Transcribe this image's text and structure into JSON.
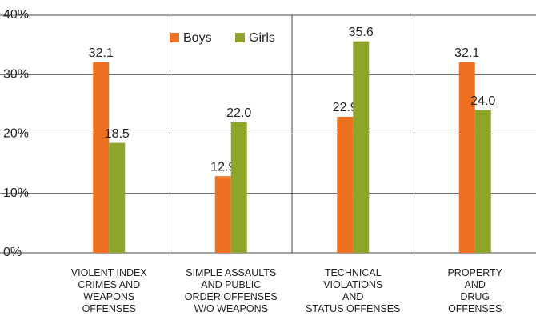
{
  "chart_data": {
    "type": "bar",
    "categories": [
      "VIOLENT INDEX\nCRIMES AND\nWEAPONS\nOFFENSES",
      "SIMPLE ASSAULTS\nAND PUBLIC\nORDER OFFENSES\nW/O WEAPONS",
      "TECHNICAL\nVIOLATIONS\nAND\nSTATUS OFFENSES",
      "PROPERTY\nAND\nDRUG\nOFFENSES"
    ],
    "series": [
      {
        "name": "Boys",
        "color": "#f07022",
        "values": [
          32.1,
          12.9,
          22.9,
          32.1
        ],
        "value_labels": [
          "32.1",
          "12.9",
          "22.9",
          "32.1"
        ]
      },
      {
        "name": "Girls",
        "color": "#8ca52a",
        "values": [
          18.5,
          22.0,
          35.6,
          24.0
        ],
        "value_labels": [
          "18.5",
          "22.0",
          "35.6",
          "24.0"
        ]
      }
    ],
    "ylim": [
      0,
      40
    ],
    "yticks": [
      {
        "value": 0,
        "label": "0%"
      },
      {
        "value": 10,
        "label": "10%"
      },
      {
        "value": 20,
        "label": "20%"
      },
      {
        "value": 30,
        "label": "30%"
      },
      {
        "value": 40,
        "label": "40%"
      }
    ],
    "grid": true
  }
}
